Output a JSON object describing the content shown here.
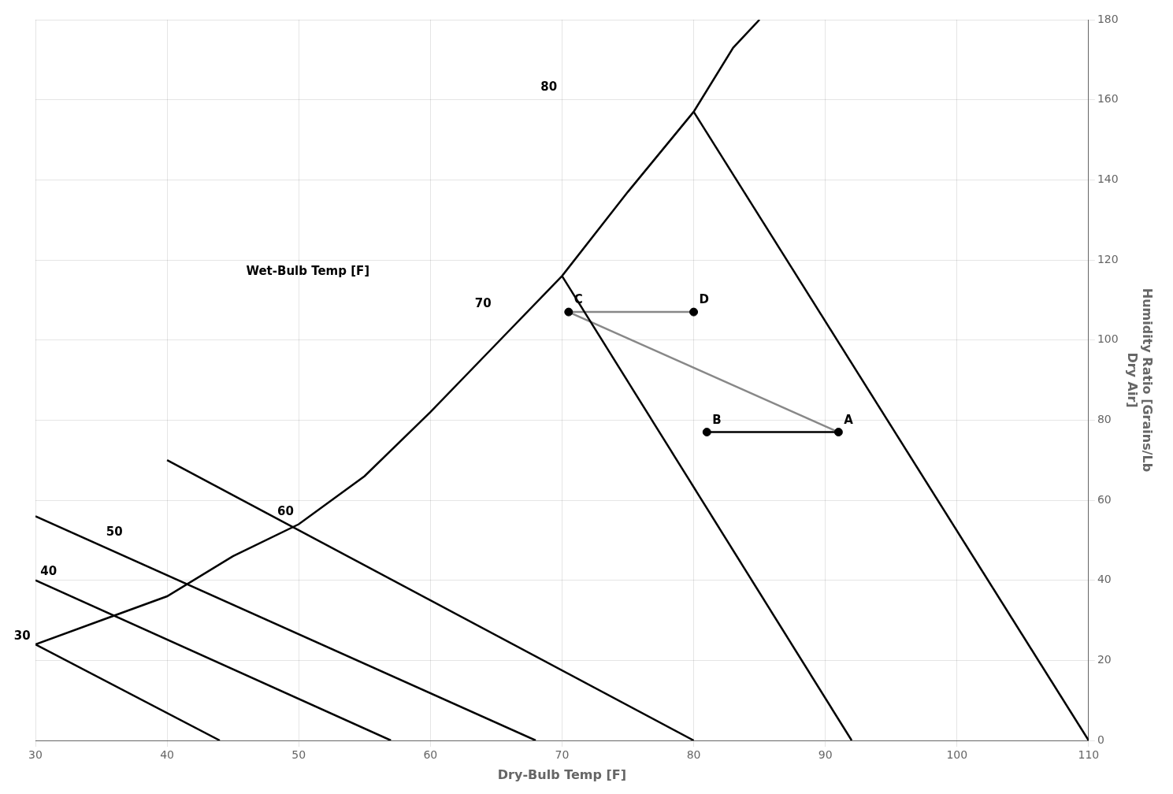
{
  "chart_data": {
    "type": "line",
    "xlabel": "Dry-Bulb Temp [F]",
    "ylabel": "Humidity Ratio [Grains/Lb\nDry Air]",
    "xlim": [
      30,
      110
    ],
    "xticks": [
      30,
      40,
      50,
      60,
      70,
      80,
      90,
      100,
      110
    ],
    "ylim": [
      0,
      180
    ],
    "yticks": [
      0,
      20,
      40,
      60,
      80,
      100,
      120,
      140,
      160,
      180
    ],
    "grid": true,
    "series": [
      {
        "type": "line",
        "color": "#000000",
        "line_style": "solid",
        "x": [
          30,
          35,
          40,
          45,
          50,
          55,
          60,
          65,
          70,
          75,
          80,
          83,
          85
        ],
        "values": [
          24,
          30,
          36,
          46,
          54,
          66,
          82,
          99,
          116,
          137,
          157,
          173,
          180
        ]
      },
      {
        "type": "line",
        "color": "#000000",
        "line_style": "solid",
        "x": [
          30,
          44
        ],
        "values": [
          24,
          0
        ],
        "label": "30",
        "label_at": [
          29,
          26
        ]
      },
      {
        "type": "line",
        "color": "#000000",
        "line_style": "solid",
        "x": [
          30,
          57
        ],
        "values": [
          40,
          0
        ],
        "label": "40",
        "label_at": [
          31,
          42
        ]
      },
      {
        "type": "line",
        "color": "#000000",
        "line_style": "solid",
        "x": [
          30,
          68
        ],
        "values": [
          56,
          0
        ],
        "label": "50",
        "label_at": [
          36,
          52
        ]
      },
      {
        "type": "line",
        "color": "#000000",
        "line_style": "solid",
        "x": [
          40,
          80
        ],
        "values": [
          70,
          0
        ],
        "label": "60",
        "label_at": [
          49,
          57
        ]
      },
      {
        "type": "line",
        "color": "#000000",
        "line_style": "solid",
        "x": [
          70,
          92
        ],
        "values": [
          116,
          0
        ],
        "label": "70",
        "label_at": [
          64,
          109
        ]
      },
      {
        "type": "line",
        "color": "#000000",
        "line_style": "solid",
        "x": [
          80,
          110
        ],
        "values": [
          157,
          0
        ],
        "label": "80",
        "label_at": [
          69,
          163
        ]
      },
      {
        "type": "line",
        "color": "#888888",
        "line_style": "solid",
        "x": [
          70.5,
          91
        ],
        "values": [
          107,
          77
        ]
      },
      {
        "type": "line",
        "color": "#888888",
        "line_style": "solid",
        "x": [
          70.5,
          80
        ],
        "values": [
          107,
          107
        ]
      },
      {
        "type": "line",
        "color": "#000000",
        "line_style": "solid",
        "x": [
          81,
          91
        ],
        "values": [
          77,
          77
        ]
      },
      {
        "type": "scatter",
        "color": "#000000",
        "marker": "circle",
        "x": [
          91,
          81,
          70.5,
          80
        ],
        "values": [
          77,
          77,
          107,
          107
        ],
        "labels": [
          "A",
          "B",
          "C",
          "D"
        ]
      }
    ],
    "annotations": [
      {
        "text": "Wet-Bulb Temp [F]",
        "x": 46,
        "y": 117
      }
    ]
  }
}
